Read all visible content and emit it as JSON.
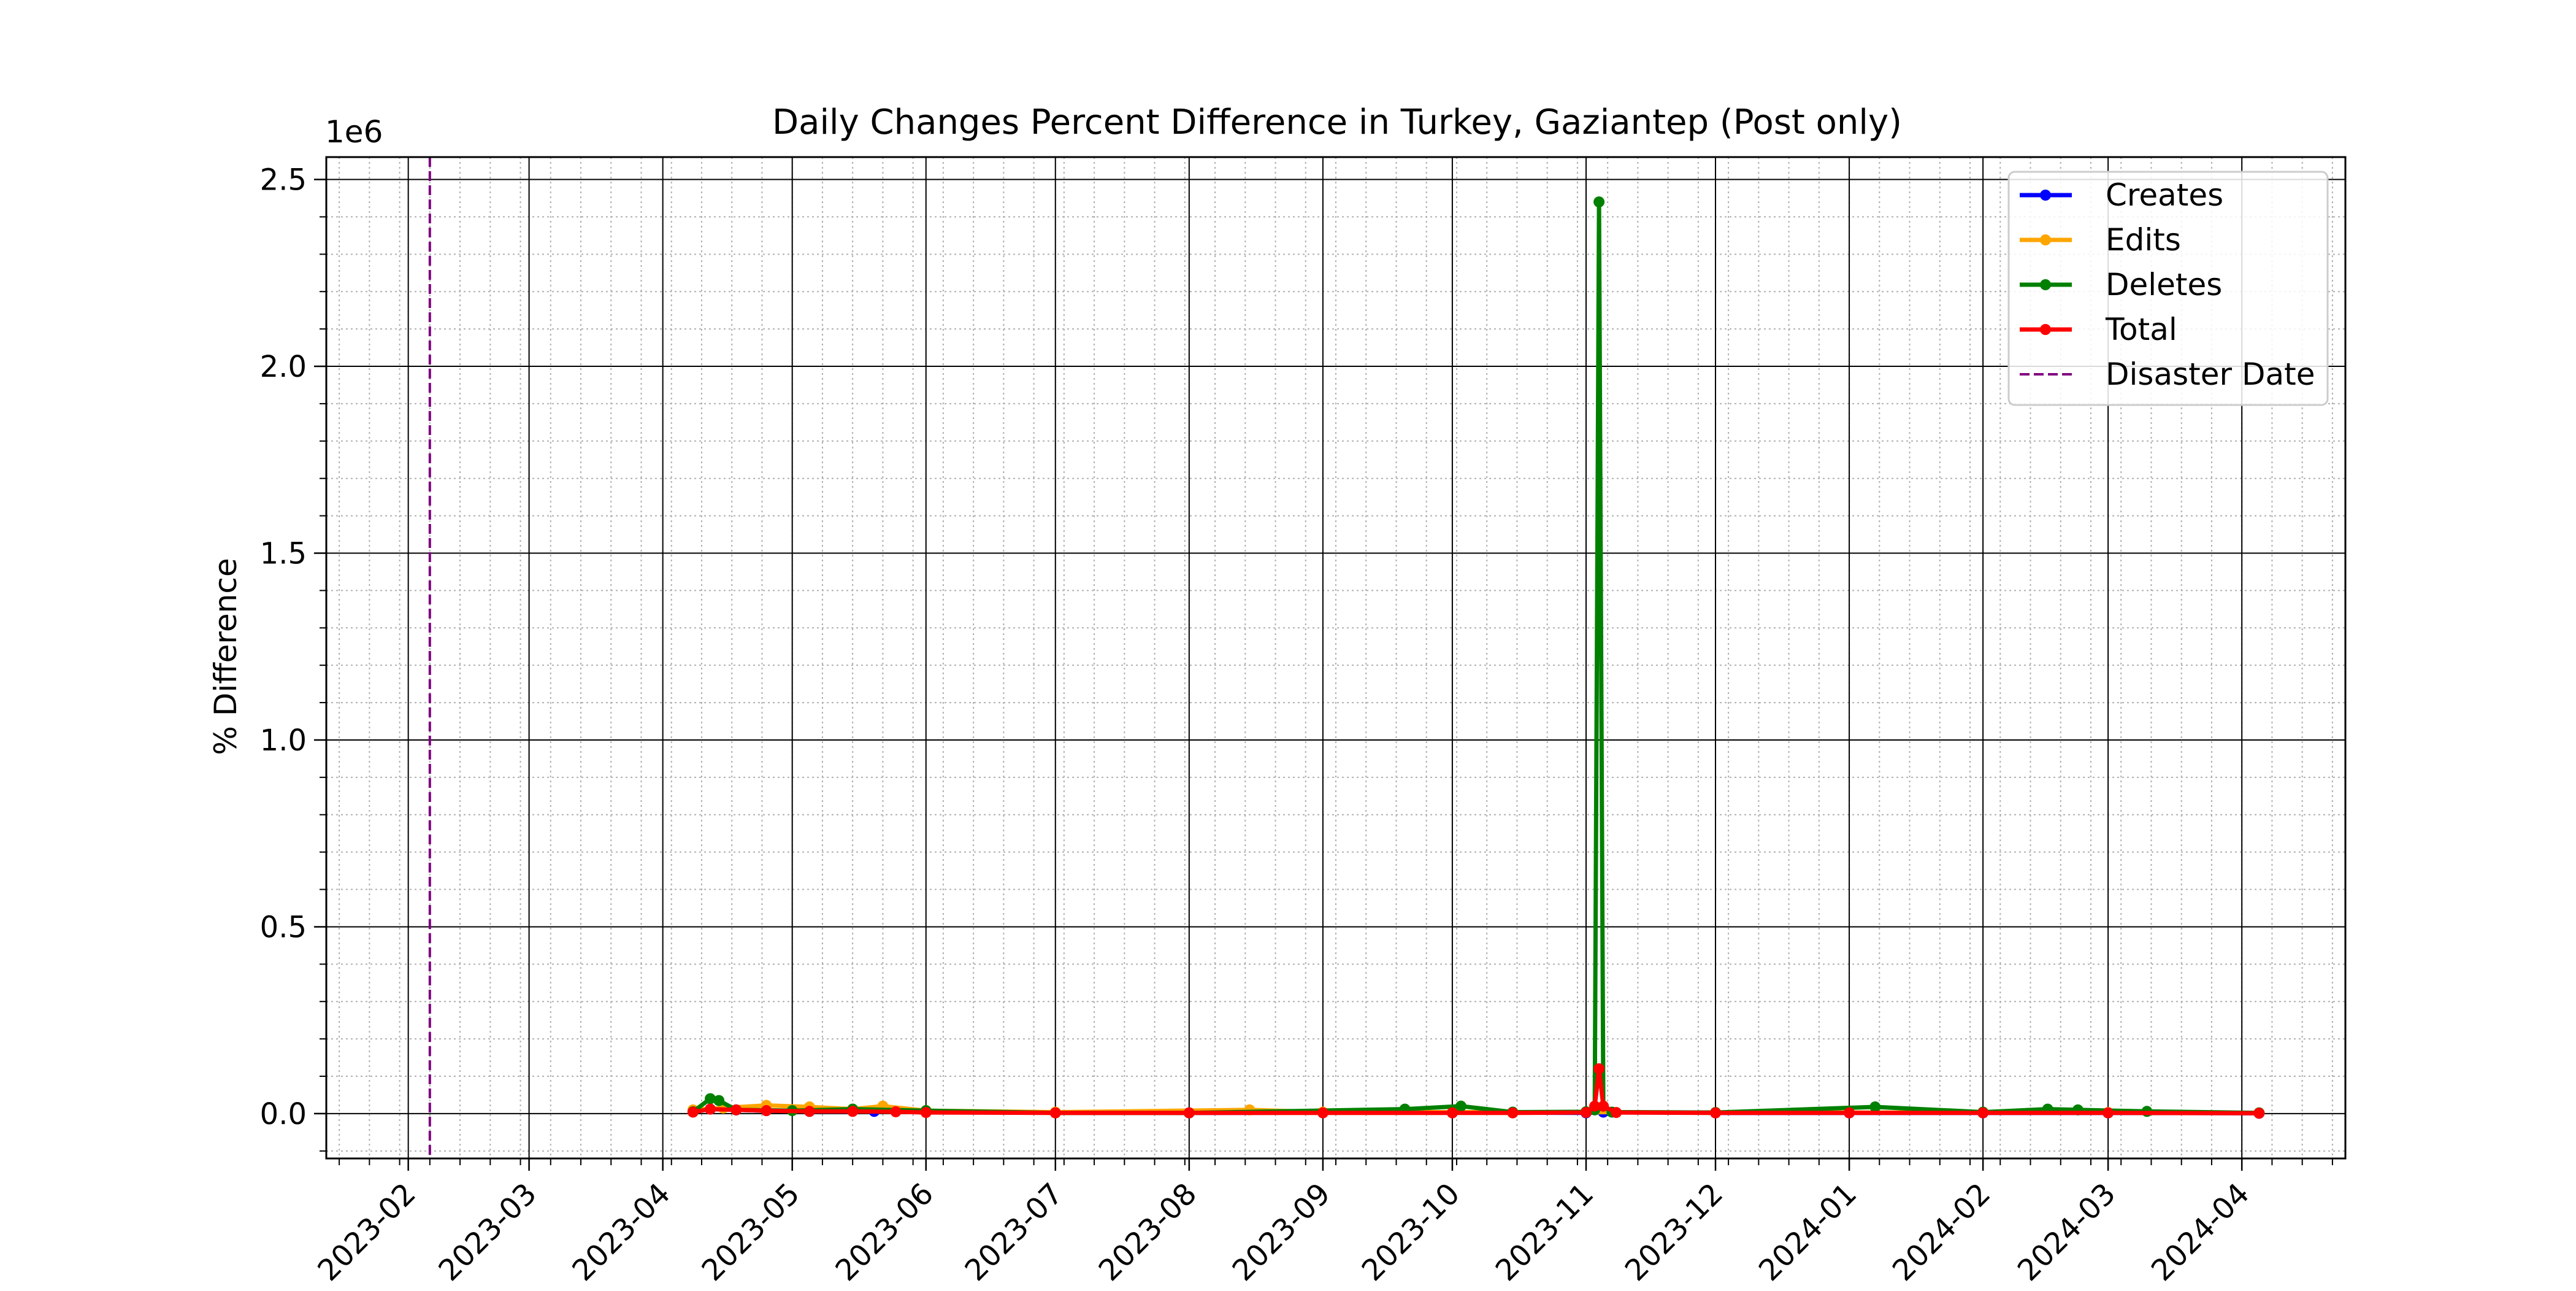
{
  "chart_data": {
    "type": "line",
    "title": "Daily Changes Percent Difference in Turkey, Gaziantep (Post only)",
    "xlabel": "",
    "ylabel": "% Difference",
    "y_offset_label": "1e6",
    "y_multiplier": 1000000,
    "xlim": [
      "2023-01-13",
      "2024-04-25"
    ],
    "ylim": [
      -0.12,
      2.56
    ],
    "x_ticks": [
      "2023-02",
      "2023-03",
      "2023-04",
      "2023-05",
      "2023-06",
      "2023-07",
      "2023-08",
      "2023-09",
      "2023-10",
      "2023-11",
      "2023-12",
      "2024-01",
      "2024-02",
      "2024-03",
      "2024-04"
    ],
    "x_tick_dates": [
      "2023-02-01",
      "2023-03-01",
      "2023-04-01",
      "2023-05-01",
      "2023-06-01",
      "2023-07-01",
      "2023-08-01",
      "2023-09-01",
      "2023-10-01",
      "2023-11-01",
      "2023-12-01",
      "2024-01-01",
      "2024-02-01",
      "2024-03-01",
      "2024-04-01"
    ],
    "y_ticks": [
      0.0,
      0.5,
      1.0,
      1.5,
      2.0,
      2.5
    ],
    "y_tick_labels": [
      "0.0",
      "0.5",
      "1.0",
      "1.5",
      "2.0",
      "2.5"
    ],
    "grid": true,
    "minor_grid": true,
    "legend_position": "top-right",
    "disaster_date": {
      "label": "Disaster Date",
      "date": "2023-02-06",
      "color": "#800080"
    },
    "series": [
      {
        "name": "Creates",
        "color": "#0000ff",
        "x": [
          "2023-04-08",
          "2023-04-12",
          "2023-04-18",
          "2023-04-25",
          "2023-05-05",
          "2023-05-20",
          "2023-06-01",
          "2023-08-01",
          "2023-10-01",
          "2023-11-01",
          "2023-11-05",
          "2023-12-01",
          "2024-01-01",
          "2024-02-01",
          "2024-03-01",
          "2024-04-05"
        ],
        "y": [
          0.008,
          0.012,
          0.01,
          0.008,
          0.006,
          0.006,
          0.004,
          0.002,
          0.003,
          0.002,
          0.004,
          0.002,
          0.002,
          0.002,
          0.002,
          0.001
        ]
      },
      {
        "name": "Edits",
        "color": "#ffa500",
        "x": [
          "2023-04-08",
          "2023-04-15",
          "2023-04-25",
          "2023-05-05",
          "2023-05-15",
          "2023-05-22",
          "2023-06-01",
          "2023-07-01",
          "2023-08-15",
          "2023-09-01",
          "2023-10-01",
          "2023-11-01",
          "2023-12-01",
          "2024-01-01",
          "2024-02-01",
          "2024-03-01",
          "2024-04-05"
        ],
        "y": [
          0.01,
          0.015,
          0.022,
          0.018,
          0.012,
          0.02,
          0.008,
          0.004,
          0.01,
          0.004,
          0.004,
          0.004,
          0.003,
          0.003,
          0.003,
          0.003,
          0.002
        ]
      },
      {
        "name": "Deletes",
        "color": "#008000",
        "x": [
          "2023-04-08",
          "2023-04-12",
          "2023-04-14",
          "2023-04-18",
          "2023-05-01",
          "2023-05-15",
          "2023-06-01",
          "2023-07-01",
          "2023-08-01",
          "2023-09-20",
          "2023-10-03",
          "2023-10-15",
          "2023-11-01",
          "2023-11-03",
          "2023-11-04",
          "2023-11-05",
          "2023-11-07",
          "2023-12-01",
          "2024-01-07",
          "2024-02-01",
          "2024-02-16",
          "2024-02-23",
          "2024-03-10",
          "2024-04-05"
        ],
        "y": [
          0.005,
          0.04,
          0.035,
          0.01,
          0.008,
          0.012,
          0.008,
          0.002,
          0.002,
          0.012,
          0.02,
          0.004,
          0.005,
          0.01,
          2.44,
          0.02,
          0.004,
          0.003,
          0.018,
          0.004,
          0.012,
          0.01,
          0.006,
          0.002
        ]
      },
      {
        "name": "Total",
        "color": "#ff0000",
        "x": [
          "2023-04-08",
          "2023-04-12",
          "2023-04-18",
          "2023-04-25",
          "2023-05-05",
          "2023-05-15",
          "2023-05-25",
          "2023-06-01",
          "2023-07-01",
          "2023-08-01",
          "2023-09-01",
          "2023-10-01",
          "2023-10-15",
          "2023-11-01",
          "2023-11-03",
          "2023-11-04",
          "2023-11-05",
          "2023-11-08",
          "2023-12-01",
          "2024-01-01",
          "2024-02-01",
          "2024-03-01",
          "2024-04-05"
        ],
        "y": [
          0.004,
          0.012,
          0.01,
          0.008,
          0.006,
          0.006,
          0.005,
          0.003,
          0.002,
          0.002,
          0.002,
          0.002,
          0.002,
          0.003,
          0.02,
          0.12,
          0.02,
          0.003,
          0.002,
          0.002,
          0.002,
          0.002,
          0.001
        ]
      }
    ]
  }
}
